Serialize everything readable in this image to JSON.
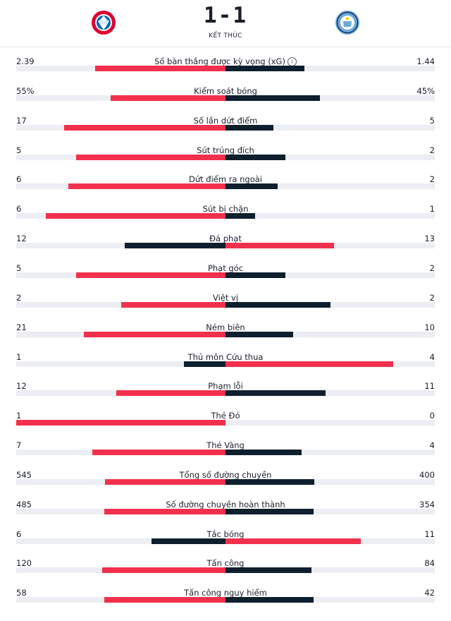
{
  "match": {
    "score": "1-1",
    "status": "KẾT THÚC",
    "home_crest": "fc-bayern-munchen-crest",
    "away_crest": "manchester-city-crest"
  },
  "colors": {
    "leading": "#f2304d",
    "trailing": "#0e1f2e",
    "track": "#eceef2"
  },
  "stats": [
    {
      "label": "Số bàn thắng được kỳ vọng (xG)",
      "home": "2.39",
      "away": "1.44",
      "info_icon": "info-icon",
      "home_share": 0.624,
      "away_share": 0.376
    },
    {
      "label": "Kiểm soát bóng",
      "home": "55%",
      "away": "45%",
      "home_share": 0.55,
      "away_share": 0.45
    },
    {
      "label": "Số lần dứt điểm",
      "home": "17",
      "away": "5",
      "home_share": 0.7727,
      "away_share": 0.2273
    },
    {
      "label": "Sút trúng đích",
      "home": "5",
      "away": "2",
      "home_share": 0.7143,
      "away_share": 0.2857
    },
    {
      "label": "Dứt điểm ra ngoài",
      "home": "6",
      "away": "2",
      "home_share": 0.75,
      "away_share": 0.25
    },
    {
      "label": "Sút bị chặn",
      "home": "6",
      "away": "1",
      "home_share": 0.8571,
      "away_share": 0.1429
    },
    {
      "label": "Đá phạt",
      "home": "12",
      "away": "13",
      "home_share": 0.48,
      "away_share": 0.52
    },
    {
      "label": "Phạt góc",
      "home": "5",
      "away": "2",
      "home_share": 0.7143,
      "away_share": 0.2857
    },
    {
      "label": "Việt vị",
      "home": "2",
      "away": "2",
      "home_share": 0.5,
      "away_share": 0.5
    },
    {
      "label": "Ném biên",
      "home": "21",
      "away": "10",
      "home_share": 0.6774,
      "away_share": 0.3226
    },
    {
      "label": "Thủ môn Cứu thua",
      "home": "1",
      "away": "4",
      "home_share": 0.2,
      "away_share": 0.8
    },
    {
      "label": "Phạm lỗi",
      "home": "12",
      "away": "11",
      "home_share": 0.5217,
      "away_share": 0.4783
    },
    {
      "label": "Thẻ Đỏ",
      "home": "1",
      "away": "0",
      "home_share": 1.0,
      "away_share": 0.0
    },
    {
      "label": "Thẻ Vàng",
      "home": "7",
      "away": "4",
      "home_share": 0.6364,
      "away_share": 0.3636
    },
    {
      "label": "Tổng số đường chuyền",
      "home": "545",
      "away": "400",
      "home_share": 0.5767,
      "away_share": 0.4233
    },
    {
      "label": "Số đường chuyền hoàn thành",
      "home": "485",
      "away": "354",
      "home_share": 0.5781,
      "away_share": 0.4219
    },
    {
      "label": "Tắc bóng",
      "home": "6",
      "away": "11",
      "home_share": 0.3529,
      "away_share": 0.6471
    },
    {
      "label": "Tấn công",
      "home": "120",
      "away": "84",
      "home_share": 0.5882,
      "away_share": 0.4118
    },
    {
      "label": "Tấn công nguy hiểm",
      "home": "58",
      "away": "42",
      "home_share": 0.58,
      "away_share": 0.42
    }
  ]
}
